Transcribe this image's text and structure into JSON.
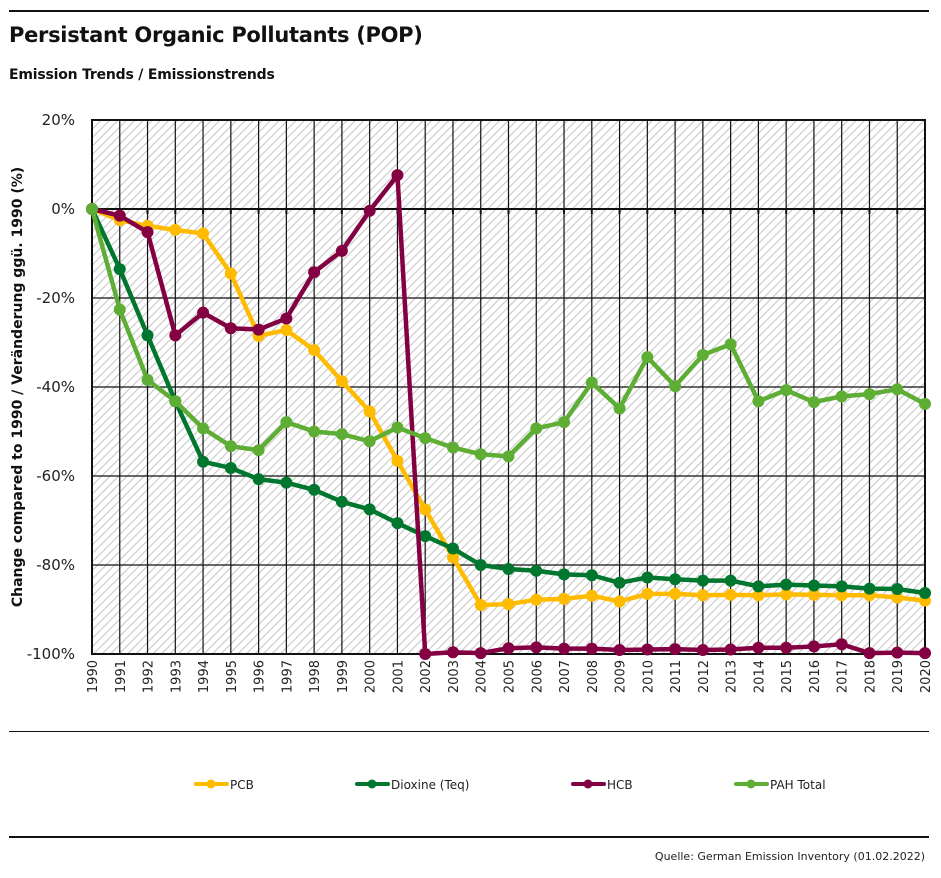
{
  "header": {
    "title": "Persistant Organic Pollutants (POP)",
    "subtitle": "Emission Trends / Emissionstrends"
  },
  "footer": {
    "source": "Quelle: German Emission Inventory (01.02.2022)"
  },
  "chart_data": {
    "type": "line",
    "title": "Persistant Organic Pollutants (POP)",
    "subtitle": "Emission Trends / Emissionstrends",
    "xlabel": "",
    "ylabel": "Change compared to 1990 / Veränderung ggü. 1990 (%)",
    "ylim": [
      -100,
      20
    ],
    "y_ticks": [
      20,
      0,
      -20,
      -40,
      -60,
      -80,
      -100
    ],
    "y_tick_labels": [
      "20%",
      "0%",
      "-20%",
      "-40%",
      "-60%",
      "-80%",
      "-100%"
    ],
    "grid": true,
    "legend_position": "bottom",
    "x": [
      "1990",
      "1991",
      "1992",
      "1993",
      "1994",
      "1995",
      "1996",
      "1997",
      "1998",
      "1999",
      "2000",
      "2001",
      "2002",
      "2003",
      "2004",
      "2005",
      "2006",
      "2007",
      "2008",
      "2009",
      "2010",
      "2011",
      "2012",
      "2013",
      "2014",
      "2015",
      "2016",
      "2017",
      "2018",
      "2019",
      "2020"
    ],
    "series": [
      {
        "name": "PCB",
        "color": "#FFBB00",
        "values": [
          0,
          -2.5,
          -3.8,
          -4.7,
          -5.5,
          -14.5,
          -28.5,
          -27.2,
          -31.7,
          -38.7,
          -45.5,
          -56.6,
          -67.5,
          -78.3,
          -89.0,
          -88.8,
          -87.8,
          -87.6,
          -86.9,
          -88.2,
          -86.5,
          -86.5,
          -86.8,
          -86.7,
          -86.8,
          -86.6,
          -86.7,
          -86.8,
          -86.8,
          -87.3,
          -88.0
        ]
      },
      {
        "name": "Dioxine (Teq)",
        "color": "#00762E",
        "values": [
          0,
          -13.5,
          -28.4,
          -43.2,
          -56.8,
          -58.2,
          -60.7,
          -61.5,
          -63.1,
          -65.8,
          -67.5,
          -70.6,
          -73.5,
          -76.3,
          -80.0,
          -80.9,
          -81.3,
          -82.1,
          -82.3,
          -84.0,
          -82.8,
          -83.2,
          -83.5,
          -83.5,
          -84.8,
          -84.4,
          -84.6,
          -84.8,
          -85.3,
          -85.4,
          -86.3
        ]
      },
      {
        "name": "HCB",
        "color": "#830042",
        "values": [
          0,
          -1.5,
          -5.2,
          -28.4,
          -23.3,
          -26.8,
          -27.1,
          -24.6,
          -14.2,
          -9.4,
          -0.4,
          7.6,
          -100.0,
          -99.6,
          -99.8,
          -98.7,
          -98.5,
          -98.8,
          -98.8,
          -99.1,
          -99.0,
          -98.9,
          -99.1,
          -99.0,
          -98.6,
          -98.6,
          -98.3,
          -97.8,
          -99.8,
          -99.7,
          -99.8
        ]
      },
      {
        "name": "PAH Total",
        "color": "#5EAD35",
        "values": [
          0,
          -22.6,
          -38.4,
          -43.2,
          -49.3,
          -53.3,
          -54.2,
          -47.9,
          -50.0,
          -50.6,
          -52.2,
          -49.1,
          -51.5,
          -53.6,
          -55.1,
          -55.6,
          -49.3,
          -47.9,
          -39.0,
          -44.8,
          -33.3,
          -39.8,
          -32.8,
          -30.4,
          -43.2,
          -40.7,
          -43.4,
          -42.1,
          -41.6,
          -40.5,
          -43.8
        ]
      }
    ],
    "draw_order": [
      "PCB",
      "Dioxine (Teq)",
      "HCB",
      "PAH Total"
    ]
  }
}
